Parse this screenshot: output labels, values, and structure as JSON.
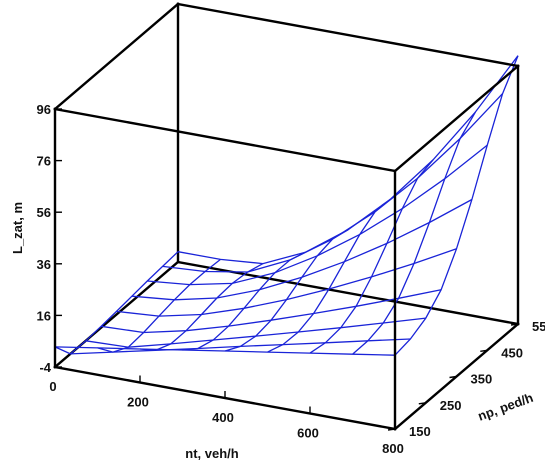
{
  "chart_data": {
    "type": "surface",
    "xlabel": "nt, veh/h",
    "ylabel": "np, ped/h",
    "zlabel": "L_zat, m",
    "x_ticks": [
      0,
      200,
      400,
      600,
      800
    ],
    "y_ticks": [
      150,
      250,
      350,
      450,
      550
    ],
    "z_ticks": [
      -4,
      16,
      36,
      56,
      76,
      96
    ],
    "xlim": [
      0,
      800
    ],
    "ylim": [
      150,
      550
    ],
    "zlim": [
      -4,
      96
    ],
    "grid_x": [
      0,
      100,
      200,
      300,
      400,
      500,
      600,
      700,
      800
    ],
    "grid_y": [
      150,
      200,
      250,
      300,
      350,
      400,
      450,
      500,
      550
    ],
    "z_values": [
      [
        3.8,
        6.4,
        9.0,
        11.6,
        14.2,
        16.8,
        19.4,
        22.0,
        24.6
      ],
      [
        -4.0,
        -0.3,
        3.4,
        7.1,
        10.9,
        14.6,
        18.3,
        22.1,
        25.8
      ],
      [
        -4.0,
        -3.5,
        0.8,
        5.3,
        9.8,
        14.4,
        19.1,
        23.9,
        28.8
      ],
      [
        -3.5,
        -2.9,
        0.8,
        5.6,
        10.9,
        16.5,
        22.3,
        28.4,
        34.7
      ],
      [
        -2.8,
        -1.6,
        2.0,
        7.4,
        13.8,
        20.9,
        28.6,
        36.8,
        45.5
      ],
      [
        -2.0,
        -0.4,
        3.3,
        9.5,
        17.4,
        26.4,
        36.5,
        47.6,
        59.5
      ],
      [
        -1.2,
        0.4,
        3.9,
        11.0,
        20.6,
        31.9,
        44.9,
        59.5,
        75.5
      ],
      [
        -0.6,
        0.4,
        3.2,
        10.9,
        22.0,
        35.6,
        51.6,
        70.0,
        90.4
      ],
      [
        0.0,
        0.0,
        1.4,
        8.8,
        20.5,
        35.4,
        53.6,
        75.2,
        100.0
      ]
    ],
    "surface_color": "#1a24d8",
    "box_color": "#000000"
  }
}
